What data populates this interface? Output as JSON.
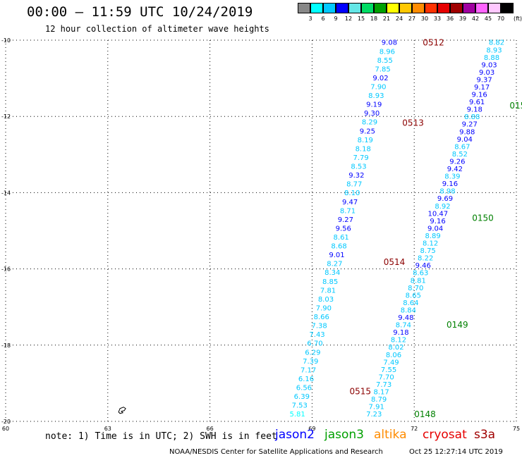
{
  "title": "00:00 – 11:59 UTC 10/24/2019",
  "subtitle": "12 hour collection of altimeter wave heights",
  "colorbar": {
    "unit": "(ft)",
    "labels": [
      "3",
      "6",
      "9",
      "12",
      "15",
      "18",
      "21",
      "24",
      "27",
      "30",
      "33",
      "36",
      "39",
      "42",
      "45",
      "70"
    ],
    "colors": [
      "#888888",
      "#00ffff",
      "#00c8ff",
      "#0000ff",
      "#64e6e6",
      "#00dc64",
      "#00a000",
      "#ffff00",
      "#ffc800",
      "#ff8c00",
      "#ff3200",
      "#e60000",
      "#a00000",
      "#a000a0",
      "#ff64ff",
      "#ffc8ff",
      "#000000"
    ]
  },
  "chart_data": {
    "type": "map",
    "longitude_ticks": [
      {
        "lon": 60,
        "label": "60"
      },
      {
        "lon": 63,
        "label": "63"
      },
      {
        "lon": 66,
        "label": "66"
      },
      {
        "lon": 69,
        "label": "69"
      },
      {
        "lon": 72,
        "label": "72"
      },
      {
        "lon": 75,
        "label": "75"
      }
    ],
    "latitude_ticks": [
      {
        "lat": -10,
        "label": "-10"
      },
      {
        "lat": -12,
        "label": "-12"
      },
      {
        "lat": -14,
        "label": "-14"
      },
      {
        "lat": -16,
        "label": "-16"
      },
      {
        "lat": -18,
        "label": "-18"
      },
      {
        "lat": -20,
        "label": "-20"
      }
    ],
    "lon_range": [
      60,
      75
    ],
    "lat_range": [
      -20,
      -10
    ],
    "grid": true,
    "tracks": [
      {
        "name": "jason2",
        "start_lon": 71.5,
        "start_lat": -10.05,
        "end_lon": 68.8,
        "end_lat": -19.8,
        "values": [
          "9.08",
          "8.96",
          "8.55",
          "7.85",
          "9.02",
          "7.90",
          "8.93",
          "9.19",
          "9.30",
          "8.29",
          "9.25",
          "8.19",
          "8.18",
          "7.79",
          "8.53",
          "9.32",
          "8.77",
          "8.10",
          "9.47",
          "8.71",
          "9.27",
          "9.56",
          "8.61",
          "8.68",
          "9.01",
          "8.27",
          "8.34",
          "8.85",
          "7.81",
          "8.03",
          "7.90",
          "8.66",
          "7.38",
          "7.43",
          "6.70",
          "6.29",
          "7.39",
          "7.17",
          "6.16",
          "6.56",
          "6.39",
          "7.53",
          "5.81"
        ],
        "pass_labels": [
          {
            "text": "0512",
            "lon": 72.25,
            "lat": -10.05
          },
          {
            "text": "0513",
            "lon": 71.65,
            "lat": -12.15
          },
          {
            "text": "0514",
            "lon": 71.1,
            "lat": -15.8
          },
          {
            "text": "0515",
            "lon": 70.1,
            "lat": -19.2
          }
        ]
      },
      {
        "name": "jason3",
        "start_lon": 74.65,
        "start_lat": -10.05,
        "end_lon": 71.05,
        "end_lat": -19.8,
        "values": [
          "8.82",
          "8.93",
          "8.88",
          "9.03",
          "9.03",
          "9.37",
          "9.17",
          "9.16",
          "9.61",
          "9.18",
          "8.88",
          "9.27",
          "9.88",
          "9.04",
          "8.67",
          "8.52",
          "9.26",
          "9.42",
          "8.39",
          "9.16",
          "8.98",
          "9.69",
          "8.92",
          "10.47",
          "9.16",
          "9.04",
          "8.89",
          "8.12",
          "8.75",
          "8.22",
          "9.46",
          "8.63",
          "8.81",
          "8.70",
          "8.65",
          "8.64",
          "8.84",
          "9.48",
          "8.74",
          "9.18",
          "8.12",
          "8.02",
          "8.06",
          "7.49",
          "7.55",
          "7.70",
          "7.73",
          "8.17",
          "8.79",
          "7.91",
          "7.23"
        ],
        "pass_labels": [
          {
            "text": "0151",
            "lon": 74.8,
            "lat": -11.7
          },
          {
            "text": "0150",
            "lon": 73.7,
            "lat": -14.65
          },
          {
            "text": "0149",
            "lon": 72.95,
            "lat": -17.45
          },
          {
            "text": "0148",
            "lon": 72.0,
            "lat": -19.8
          }
        ]
      }
    ],
    "coastline": {
      "name": "island",
      "lon": 63.4,
      "lat": -19.7
    }
  },
  "note": "note: 1) Time is in UTC; 2) SWH is in feet",
  "legend": [
    {
      "label": "jason2",
      "color": "#0000ff"
    },
    {
      "label": "jason3",
      "color": "#00a000"
    },
    {
      "label": "altika",
      "color": "#ff8c00"
    },
    {
      "label": "cryosat",
      "color": "#e60000"
    },
    {
      "label": "s3a",
      "color": "#a00000"
    }
  ],
  "footer_left": "NOAA/NESDIS Center for Satellite Applications and Research",
  "footer_right": "Oct 25 12:27:14 UTC 2019"
}
